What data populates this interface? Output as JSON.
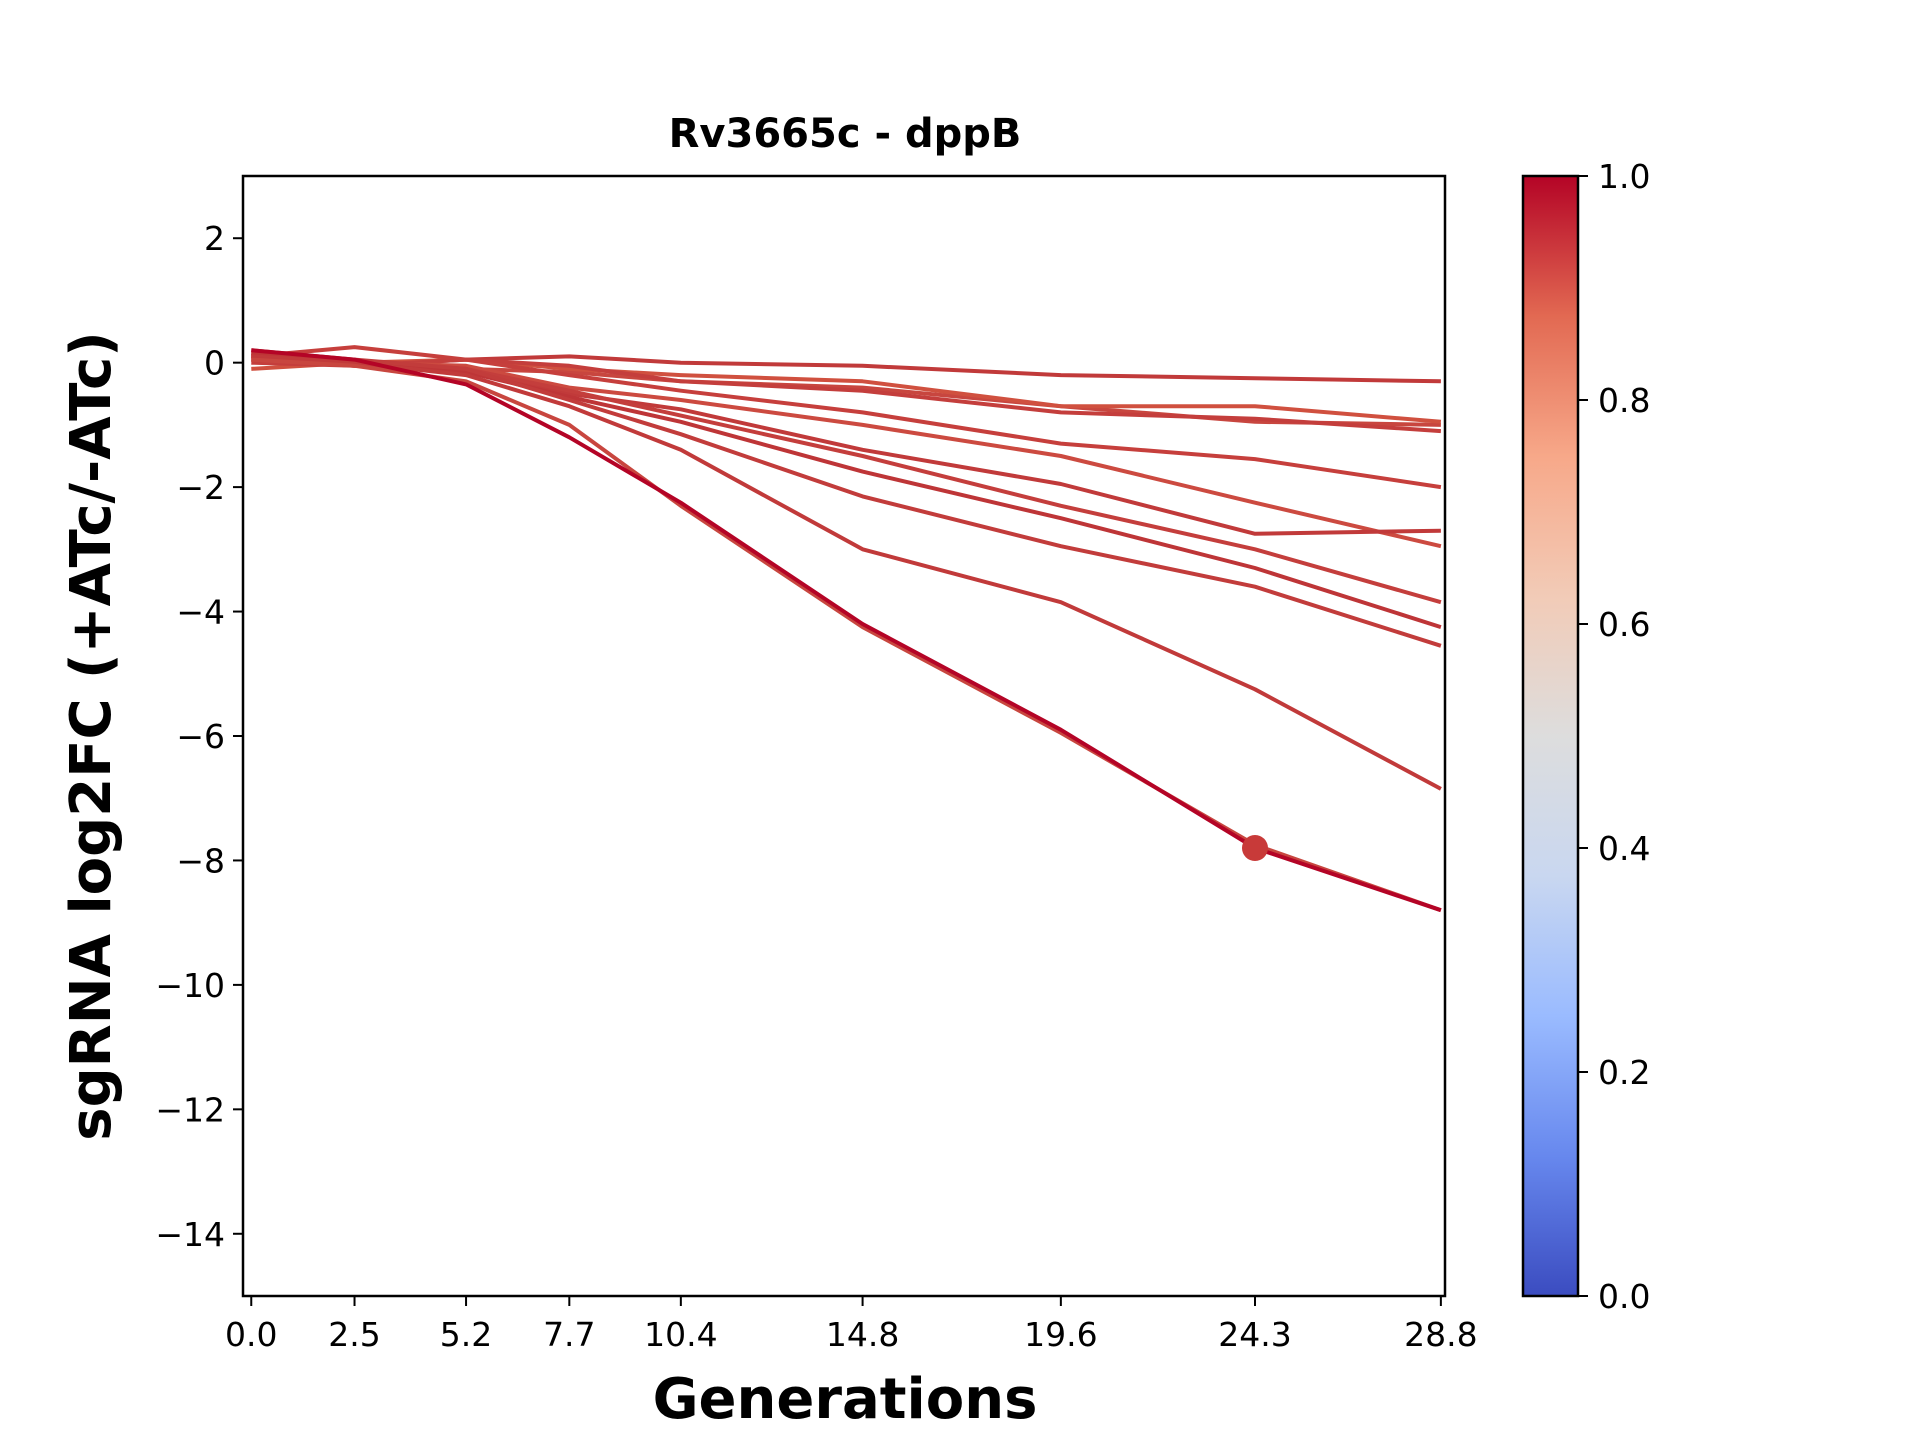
{
  "chart_data": {
    "type": "line",
    "title": "Rv3665c - dppB",
    "xlabel": "Generations",
    "ylabel": "sgRNA log2FC (+ATc/-ATc)",
    "x": [
      0.0,
      2.5,
      5.2,
      7.7,
      10.4,
      14.8,
      19.6,
      24.3,
      28.8
    ],
    "x_tick_labels": [
      "0.0",
      "2.5",
      "5.2",
      "7.7",
      "10.4",
      "14.8",
      "19.6",
      "24.3",
      "28.8"
    ],
    "y_ticks": [
      2,
      0,
      -2,
      -4,
      -6,
      -8,
      -10,
      -12,
      -14
    ],
    "y_tick_labels": [
      "2",
      "0",
      "−2",
      "−4",
      "−6",
      "−8",
      "−10",
      "−12",
      "−14"
    ],
    "xlim": [
      -0.2,
      28.9
    ],
    "ylim": [
      -15,
      3
    ],
    "grid": false,
    "series": [
      {
        "values": [
          0.05,
          -0.05,
          0.05,
          0.1,
          0.0,
          -0.05,
          -0.2,
          -0.25,
          -0.3
        ],
        "color": "#c13a3a"
      },
      {
        "values": [
          0.1,
          0.0,
          -0.1,
          -0.15,
          -0.3,
          -0.4,
          -0.7,
          -0.95,
          -1.0
        ],
        "color": "#c8463f"
      },
      {
        "values": [
          -0.1,
          0.0,
          0.05,
          -0.1,
          -0.2,
          -0.3,
          -0.7,
          -0.7,
          -0.95
        ],
        "color": "#d0503f"
      },
      {
        "values": [
          0.0,
          -0.05,
          0.05,
          -0.05,
          -0.3,
          -0.45,
          -0.8,
          -0.9,
          -1.1
        ],
        "color": "#c43e3c"
      },
      {
        "values": [
          0.1,
          0.25,
          0.05,
          -0.2,
          -0.45,
          -0.8,
          -1.3,
          -1.55,
          -2.0
        ],
        "color": "#c63f3c"
      },
      {
        "values": [
          0.05,
          0.0,
          -0.05,
          -0.4,
          -0.6,
          -1.0,
          -1.5,
          -2.25,
          -2.95
        ],
        "color": "#cc4a40"
      },
      {
        "values": [
          0.15,
          0.0,
          -0.1,
          -0.5,
          -0.75,
          -1.4,
          -1.95,
          -2.75,
          -2.7
        ],
        "color": "#c13a3a"
      },
      {
        "values": [
          0.1,
          -0.05,
          -0.1,
          -0.45,
          -0.85,
          -1.5,
          -2.3,
          -3.0,
          -3.85
        ],
        "color": "#c43e3c"
      },
      {
        "values": [
          0.15,
          0.0,
          -0.15,
          -0.55,
          -0.95,
          -1.75,
          -2.5,
          -3.3,
          -4.25
        ],
        "color": "#be3537"
      },
      {
        "values": [
          0.2,
          0.05,
          -0.1,
          -0.6,
          -1.15,
          -2.15,
          -2.95,
          -3.6,
          -4.55
        ],
        "color": "#c23c3b"
      },
      {
        "values": [
          0.1,
          0.0,
          -0.2,
          -0.7,
          -1.4,
          -3.0,
          -3.85,
          -5.25,
          -6.85
        ],
        "color": "#c13a3a"
      },
      {
        "values": [
          0.05,
          -0.05,
          -0.3,
          -1.0,
          -2.3,
          -4.25,
          -5.95,
          -7.75,
          -8.8
        ],
        "color": "#c8463f"
      },
      {
        "values": [
          0.2,
          0.05,
          -0.35,
          -1.2,
          -2.25,
          -4.2,
          -5.9,
          -7.8,
          -8.8
        ],
        "color": "#b40426"
      }
    ],
    "highlight_point": {
      "x": 24.3,
      "y": -7.8,
      "color": "#c83a39"
    },
    "colorbar": {
      "min": 0.0,
      "max": 1.0,
      "colormap": "coolwarm",
      "ticks": [
        "0.0",
        "0.2",
        "0.4",
        "0.6",
        "0.8",
        "1.0"
      ],
      "stops": [
        "#3b4cc0",
        "#6788ee",
        "#9abbff",
        "#c9d7f0",
        "#dddddd",
        "#f2cbb7",
        "#f7a889",
        "#e26952",
        "#b40426"
      ]
    }
  }
}
